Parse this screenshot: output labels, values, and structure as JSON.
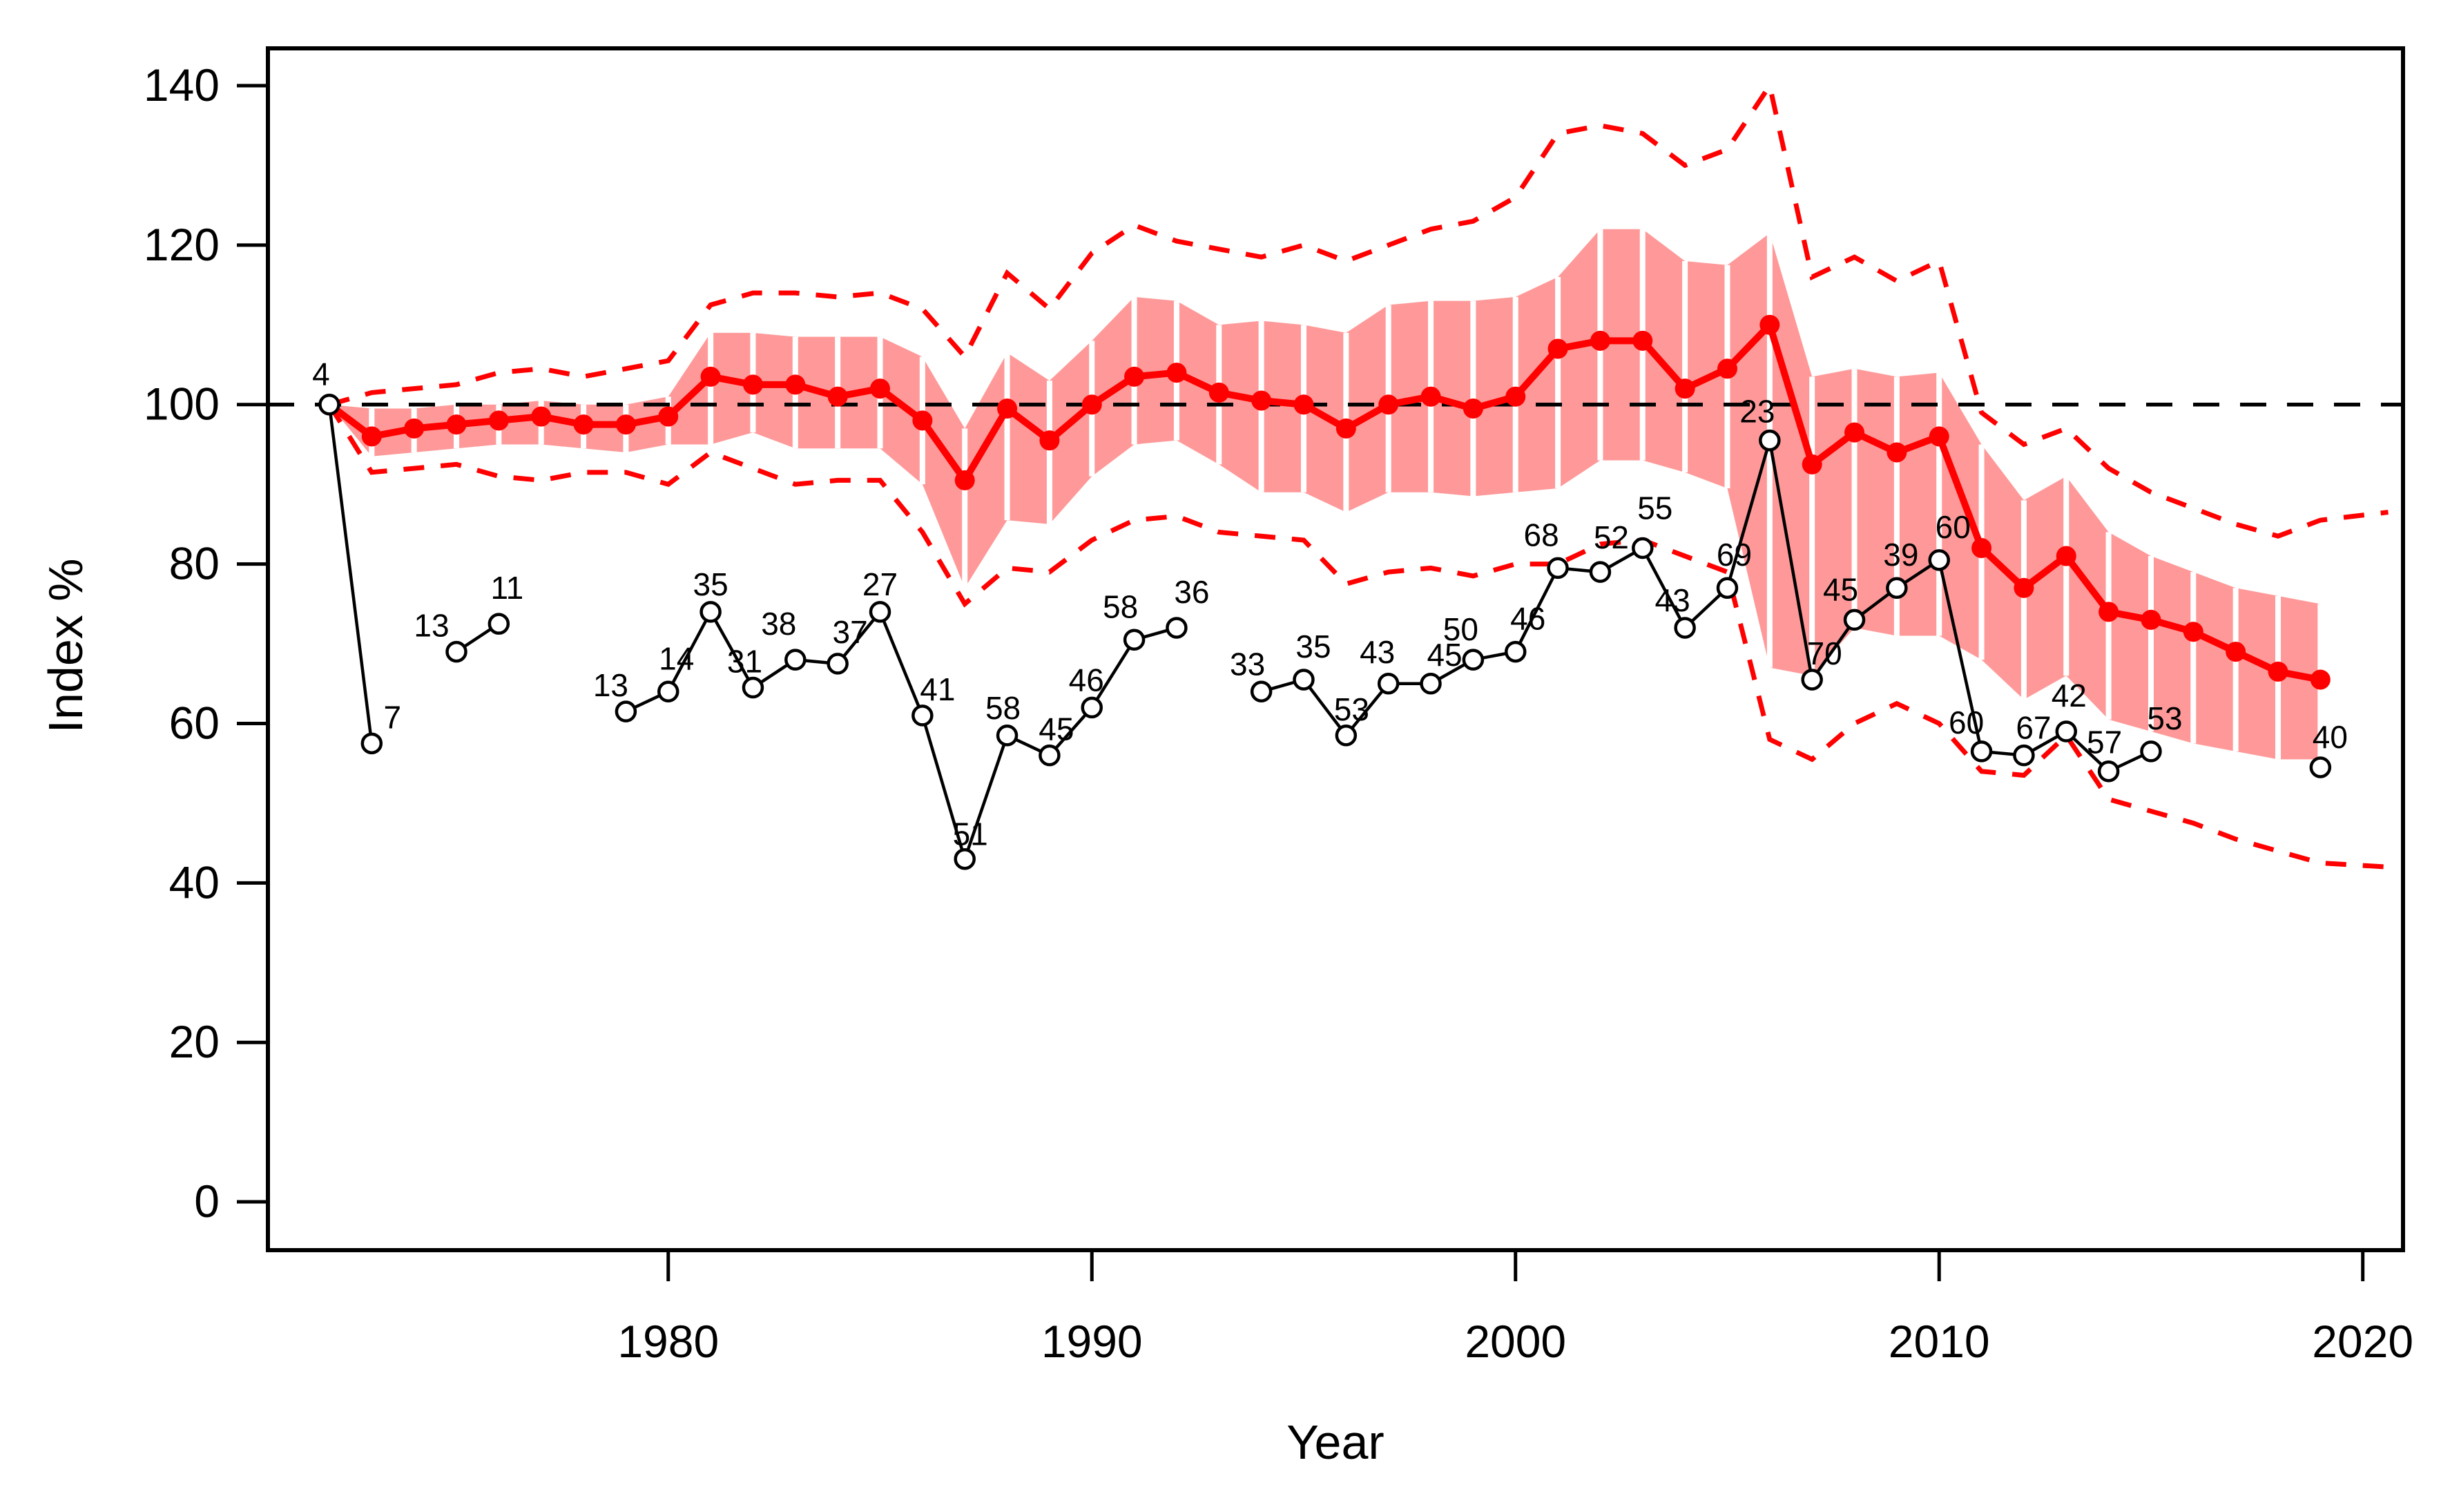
{
  "chart_data": {
    "type": "line",
    "title": "",
    "xlabel": "Year",
    "ylabel": "Index %",
    "x_ticks": [
      1980,
      1990,
      2000,
      2010,
      2020
    ],
    "y_ticks": [
      0,
      20,
      40,
      60,
      80,
      100,
      120,
      140
    ],
    "xlim": [
      1970.55,
      2020.95
    ],
    "ylim": [
      -6.06,
      144.68
    ],
    "grid": "off",
    "legend": "none",
    "reference_line_y": 100,
    "colors": {
      "index_line": "#FF0000",
      "index_marker": "#FF0000",
      "band_fill": "#FF9999",
      "band_separator": "#FFFFFF",
      "ci_dashed": "#FF0000",
      "count_line": "#000000",
      "count_marker_fill": "#FFFFFF",
      "reference_dash": "#000000",
      "axis": "#000000"
    },
    "years": [
      1972,
      1973,
      1974,
      1975,
      1976,
      1977,
      1978,
      1979,
      1980,
      1981,
      1982,
      1983,
      1984,
      1985,
      1986,
      1987,
      1988,
      1989,
      1990,
      1991,
      1992,
      1993,
      1994,
      1995,
      1996,
      1997,
      1998,
      1999,
      2000,
      2001,
      2002,
      2003,
      2004,
      2005,
      2006,
      2007,
      2008,
      2009,
      2010,
      2011,
      2012,
      2013,
      2014,
      2015,
      2016,
      2017,
      2018,
      2019
    ],
    "series": [
      {
        "name": "index_pct",
        "values": [
          100,
          96,
          97,
          97.5,
          98,
          98.5,
          97.5,
          97.5,
          98.5,
          103.5,
          102.5,
          102.5,
          101,
          102,
          98,
          90.5,
          99.5,
          95.5,
          100,
          103.5,
          104,
          101.5,
          100.5,
          100,
          97,
          100,
          101,
          99.5,
          101,
          107,
          108,
          108,
          102,
          104.5,
          110,
          92.5,
          96.5,
          94,
          96,
          82,
          77,
          81,
          74,
          73,
          71.5,
          69,
          66.5,
          65.5
        ]
      },
      {
        "name": "band_upper",
        "values": [
          100,
          99.5,
          99.5,
          100,
          100,
          100.5,
          100,
          100,
          101,
          109,
          109,
          108.5,
          108.5,
          108.5,
          106,
          97,
          106.5,
          103,
          108,
          113.5,
          113,
          110,
          110.5,
          110,
          109,
          112.5,
          113,
          113,
          113.5,
          116,
          122,
          122,
          118,
          117.5,
          121.5,
          103.5,
          104.5,
          103.5,
          104,
          95,
          88,
          91,
          84,
          81,
          79,
          77,
          76,
          75
        ]
      },
      {
        "name": "band_lower",
        "values": [
          100,
          93.5,
          94,
          94.5,
          95,
          95,
          94.5,
          94,
          95,
          95,
          96.5,
          94.5,
          94.5,
          94.5,
          90,
          77,
          85.5,
          85,
          91,
          95,
          95.5,
          92.5,
          89,
          89,
          86.5,
          89,
          89,
          88.5,
          89,
          89.5,
          93,
          93,
          91.5,
          89.5,
          67,
          66,
          72,
          71,
          71,
          68,
          63,
          66,
          60.5,
          59,
          57.5,
          56.5,
          55.5,
          55.5
        ]
      },
      {
        "name": "ci_upper_dashed",
        "values": [
          100,
          101.5,
          102,
          102.5,
          104,
          104.5,
          103.5,
          104.5,
          105.5,
          112.5,
          114,
          114,
          113.5,
          114,
          112,
          106,
          116.5,
          112,
          119,
          122.5,
          120.5,
          119.5,
          118.5,
          120,
          118,
          120,
          122,
          123,
          126,
          134,
          135,
          134,
          130,
          132,
          140,
          116,
          118.5,
          115.5,
          118,
          99,
          95,
          97,
          92,
          89,
          87,
          85,
          83.5,
          85.5
        ]
      },
      {
        "name": "ci_lower_dashed",
        "values": [
          100,
          91.5,
          92,
          92.5,
          91,
          90.5,
          91.5,
          91.5,
          90,
          94,
          92,
          90,
          90.5,
          90.5,
          84,
          75,
          79.5,
          79,
          83,
          85.5,
          86,
          84,
          83.5,
          83,
          77.5,
          79,
          79.5,
          78.5,
          80,
          80,
          82.5,
          83,
          81,
          79,
          58,
          55.5,
          60,
          62.5,
          60,
          54,
          53.5,
          58.5,
          50.5,
          49,
          47.5,
          45.5,
          44,
          42.5
        ]
      },
      {
        "name": "sample_count_index",
        "values": [
          100,
          57.5,
          null,
          69,
          72.5,
          null,
          null,
          61.5,
          64,
          74,
          64.5,
          68,
          67.5,
          74,
          61,
          43,
          58.5,
          56,
          62,
          70.5,
          72,
          null,
          64,
          65.5,
          58.5,
          65,
          65,
          68,
          69,
          79.5,
          79,
          82,
          72,
          77,
          95.5,
          65.5,
          73,
          77,
          80.5,
          56.5,
          56,
          59,
          54,
          56.5,
          null,
          null,
          null,
          54.5
        ],
        "labels": [
          "4",
          "7",
          null,
          "13",
          "11",
          null,
          null,
          "13",
          "14",
          "35",
          "31",
          "38",
          "37",
          "27",
          "41",
          "51",
          "58",
          "45",
          "46",
          "58",
          "36",
          null,
          "33",
          "35",
          "53",
          "43",
          "45",
          "50",
          "46",
          "68",
          "52",
          "55",
          "43",
          "69",
          "23",
          "70",
          "45",
          "39",
          "60",
          "60",
          "67",
          "42",
          "57",
          "53",
          null,
          null,
          null,
          "40"
        ],
        "label_dx": [
          -12,
          30,
          0,
          -36,
          12,
          0,
          0,
          -22,
          12,
          0,
          -12,
          -24,
          18,
          0,
          22,
          8,
          -6,
          10,
          -8,
          -20,
          22,
          0,
          -20,
          14,
          8,
          -16,
          20,
          -18,
          18,
          -24,
          16,
          18,
          -18,
          10,
          -18,
          18,
          -20,
          6,
          20,
          -22,
          14,
          4,
          -6,
          20,
          0,
          0,
          0,
          14
        ],
        "label_dy": [
          -28,
          -22,
          0,
          -22,
          -36,
          0,
          0,
          -22,
          -32,
          -24,
          -22,
          -36,
          -30,
          -24,
          -22,
          -20,
          -24,
          -22,
          -24,
          -32,
          -36,
          0,
          -24,
          -32,
          -22,
          -30,
          -26,
          -28,
          -32,
          -32,
          -34,
          -42,
          -24,
          -32,
          -26,
          -22,
          -28,
          -32,
          -32,
          -26,
          -24,
          -36,
          -26,
          -32,
          0,
          0,
          0,
          -28
        ]
      }
    ],
    "ci_extension": {
      "year": 2020.6,
      "upper": 86.5,
      "lower": 42
    }
  }
}
